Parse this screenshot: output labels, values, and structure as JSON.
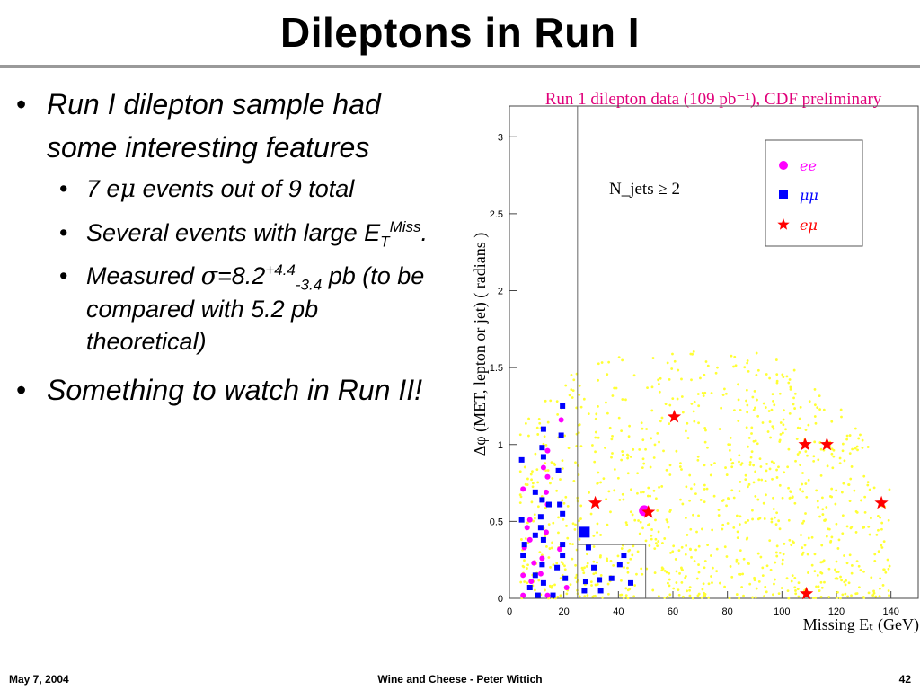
{
  "slide": {
    "title": "Dileptons in Run I",
    "bullets": [
      {
        "text": "Run I dilepton sample had some interesting features"
      },
      {
        "sub": [
          {
            "a": "7 e",
            "greek": "μ",
            "b": " events out of 9 total"
          },
          {
            "a": "Several events with large E",
            "sub": "T",
            "sup": "Miss",
            "b": "."
          },
          {
            "a": "Measured ",
            "greek": "σ",
            "c": "=8.2",
            "sup": "+4.4",
            "sub2": "-3.4",
            "b": " pb (to be compared with 5.2 pb theoretical)"
          }
        ]
      },
      {
        "text": "Something to watch in Run II!"
      }
    ]
  },
  "footer": {
    "date": "May 7, 2004",
    "center": "Wine and Cheese - Peter Wittich",
    "page": "42"
  },
  "chart_data": {
    "type": "scatter",
    "title": "Run 1 dilepton data (109 pb⁻¹), CDF preliminary",
    "xlabel": "Missing Eₜ (GeV)",
    "ylabel": "Δφ (MET, lepton or jet) ( radians )",
    "xlim": [
      0,
      150
    ],
    "ylim": [
      0,
      3.2
    ],
    "xticks": [
      0,
      20,
      40,
      60,
      80,
      100,
      120,
      140
    ],
    "yticks": [
      0,
      0.5,
      1,
      1.5,
      2,
      2.5,
      3
    ],
    "cut_label": "N_jets ≥ 2",
    "cut_box_x": 25,
    "lower_box": {
      "x": 50,
      "y": 0.35
    },
    "legend": [
      {
        "label": "ee",
        "marker": "circle",
        "color": "#ff00ff"
      },
      {
        "label": "μμ",
        "marker": "square",
        "color": "#0000ff"
      },
      {
        "label": "eμ",
        "marker": "star",
        "color": "#ff0000"
      }
    ],
    "legend_position": "top-right",
    "series": [
      {
        "name": "eμ",
        "marker": "star",
        "color": "#ff0000",
        "points": [
          [
            31.5,
            0.62
          ],
          [
            60.5,
            1.18
          ],
          [
            108.5,
            1.0
          ],
          [
            116.5,
            1.0
          ],
          [
            136.5,
            0.62
          ],
          [
            51,
            0.56
          ],
          [
            109,
            0.03
          ]
        ]
      },
      {
        "name": "ee (candidate)",
        "marker": "circle-large",
        "color": "#ff00ff",
        "points": [
          [
            49.5,
            0.57
          ]
        ]
      },
      {
        "name": "μμ (candidate)",
        "marker": "square-large",
        "color": "#0000ff",
        "points": [
          [
            27.5,
            0.43
          ]
        ]
      },
      {
        "name": "ee (MC)",
        "marker": "circle",
        "color": "#ff00ff",
        "points": [
          [
            14,
            0.96
          ],
          [
            12.5,
            0.85
          ],
          [
            14,
            0.79
          ],
          [
            13.5,
            0.69
          ],
          [
            5,
            0.71
          ],
          [
            19,
            1.16
          ],
          [
            7.5,
            0.51
          ],
          [
            14,
            0.61
          ],
          [
            6.5,
            0.46
          ],
          [
            13.5,
            0.43
          ],
          [
            5.5,
            0.33
          ],
          [
            7.5,
            0.38
          ],
          [
            12,
            0.26
          ],
          [
            9,
            0.23
          ],
          [
            5,
            0.15
          ],
          [
            11.5,
            0.16
          ],
          [
            8,
            0.11
          ],
          [
            5,
            0.02
          ],
          [
            14,
            0.02
          ],
          [
            18.5,
            0.32
          ],
          [
            21,
            0.07
          ]
        ]
      },
      {
        "name": "μμ (MC)",
        "marker": "square",
        "color": "#0000ff",
        "points": [
          [
            19.5,
            1.25
          ],
          [
            12.5,
            1.1
          ],
          [
            19,
            1.06
          ],
          [
            12,
            0.98
          ],
          [
            4.5,
            0.9
          ],
          [
            12.5,
            0.92
          ],
          [
            18,
            0.83
          ],
          [
            9.5,
            0.69
          ],
          [
            12,
            0.64
          ],
          [
            18.5,
            0.61
          ],
          [
            14.5,
            0.61
          ],
          [
            11.5,
            0.53
          ],
          [
            4.5,
            0.51
          ],
          [
            19.5,
            0.55
          ],
          [
            11.5,
            0.46
          ],
          [
            9.5,
            0.41
          ],
          [
            5.5,
            0.35
          ],
          [
            12.5,
            0.38
          ],
          [
            19.5,
            0.35
          ],
          [
            5,
            0.28
          ],
          [
            19.5,
            0.28
          ],
          [
            12,
            0.22
          ],
          [
            17.5,
            0.2
          ],
          [
            9.5,
            0.15
          ],
          [
            12.5,
            0.1
          ],
          [
            7.5,
            0.07
          ],
          [
            20.5,
            0.13
          ],
          [
            10.5,
            0.02
          ],
          [
            16,
            0.02
          ],
          [
            29,
            0.33
          ],
          [
            31,
            0.2
          ],
          [
            28,
            0.11
          ],
          [
            33,
            0.12
          ],
          [
            42,
            0.28
          ],
          [
            40.5,
            0.22
          ],
          [
            37.5,
            0.13
          ],
          [
            33.5,
            0.05
          ],
          [
            44.5,
            0.1
          ],
          [
            27.5,
            0.05
          ]
        ]
      }
    ],
    "background": {
      "name": "tt̄ MC",
      "marker": "dot",
      "color": "#ffff33",
      "count": 1100,
      "seed": 7
    }
  }
}
